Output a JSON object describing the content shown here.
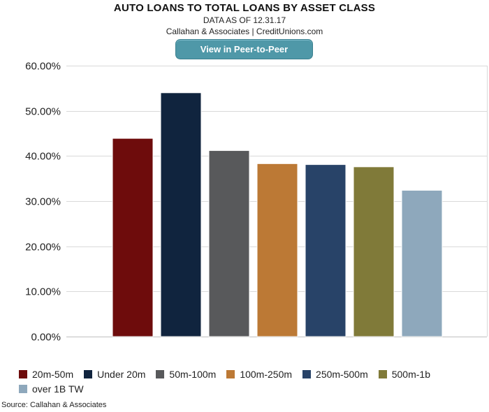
{
  "header": {
    "title": "AUTO LOANS TO TOTAL LOANS BY ASSET CLASS",
    "subtitle": "DATA AS OF 12.31.17",
    "attribution": "Callahan & Associates | CreditUnions.com",
    "cta_label": "View in Peer-to-Peer"
  },
  "footer": {
    "source": "Source: Callahan & Associates"
  },
  "chart_data": {
    "type": "bar",
    "title": "AUTO LOANS TO TOTAL LOANS BY ASSET CLASS",
    "xlabel": "",
    "ylabel": "",
    "ylim": [
      0,
      60
    ],
    "yticks": [
      0,
      10,
      20,
      30,
      40,
      50,
      60
    ],
    "ytick_labels": [
      "0.00%",
      "10.00%",
      "20.00%",
      "30.00%",
      "40.00%",
      "50.00%",
      "60.00%"
    ],
    "grid": true,
    "legend_position": "bottom",
    "categories": [
      "20m-50m",
      "Under 20m",
      "50m-100m",
      "100m-250m",
      "250m-500m",
      "500m-1b",
      "over 1B TW"
    ],
    "values": [
      43.9,
      54.0,
      41.2,
      38.3,
      38.1,
      37.6,
      32.4
    ],
    "colors": [
      "#6e0c0c",
      "#10243e",
      "#58595b",
      "#bc7935",
      "#284368",
      "#807a39",
      "#8ea8bc"
    ]
  }
}
